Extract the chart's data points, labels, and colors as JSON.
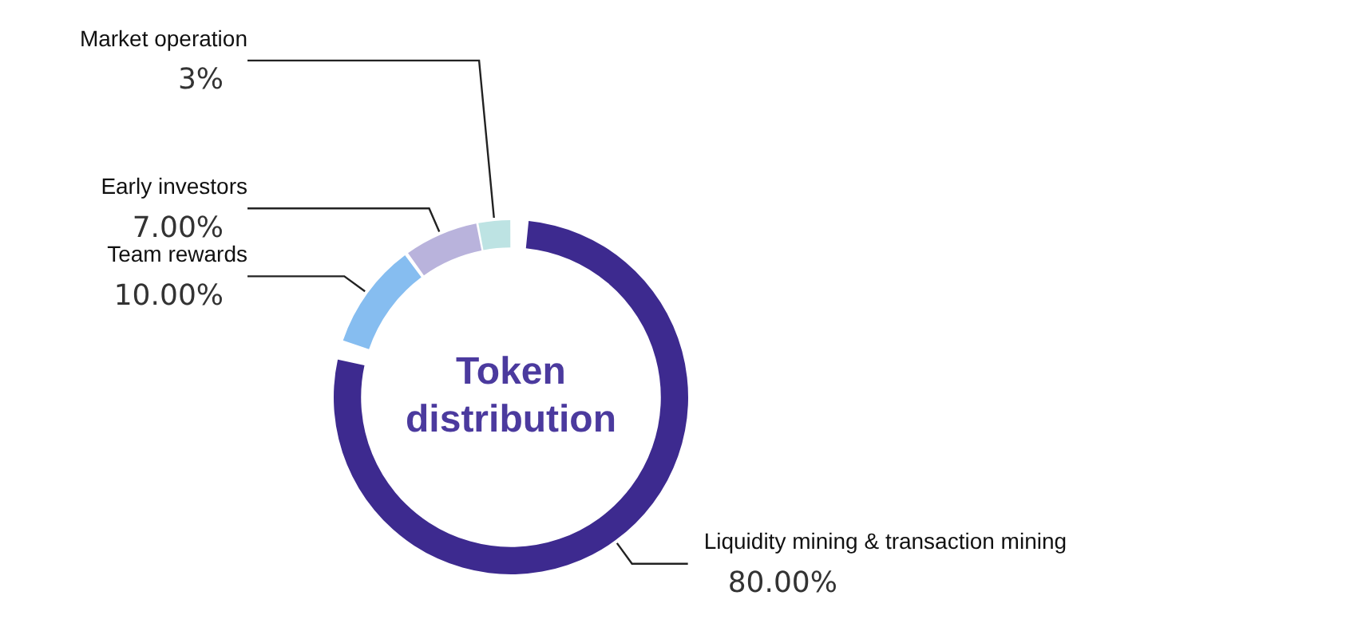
{
  "chart_data": {
    "type": "donut",
    "title": "Token distribution",
    "categories": [
      "Liquidity mining & transaction mining",
      "Team rewards",
      "Early investors",
      "Market operation"
    ],
    "values": [
      80,
      10,
      7,
      3
    ],
    "value_labels": [
      "80.00%",
      "10.00%",
      "7.00%",
      "3%"
    ],
    "colors": [
      "#3d2a8f",
      "#86bdf0",
      "#b9b3dc",
      "#bde3e3"
    ],
    "legend": false
  }
}
